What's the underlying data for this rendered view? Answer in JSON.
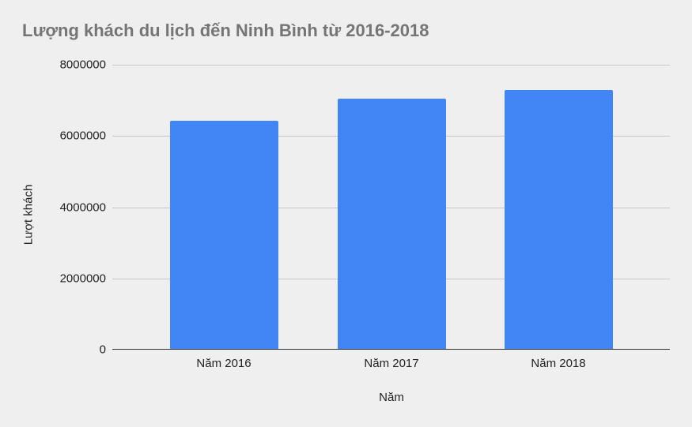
{
  "chart_data": {
    "type": "bar",
    "title": "Lượng khách du lịch đến Ninh Bình từ 2016-2018",
    "xlabel": "Năm",
    "ylabel": "Lượt khách",
    "categories": [
      "Năm 2016",
      "Năm 2017",
      "Năm 2018"
    ],
    "values": [
      6430000,
      7050000,
      7290000
    ],
    "ylim": [
      0,
      8000000
    ],
    "yticks": [
      "0",
      "2000000",
      "4000000",
      "6000000",
      "8000000"
    ],
    "grid": true,
    "legend": "none",
    "bar_color": "#4285f4"
  }
}
